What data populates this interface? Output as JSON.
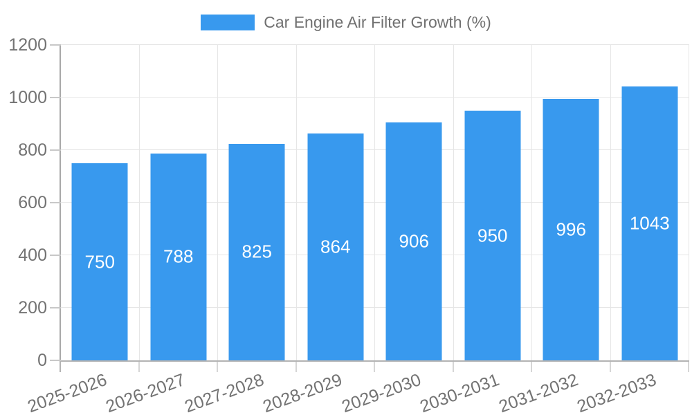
{
  "chart_data": {
    "type": "bar",
    "title": "Car Engine Air Filter Growth (%)",
    "categories": [
      "2025-2026",
      "2026-2027",
      "2027-2028",
      "2028-2029",
      "2029-2030",
      "2030-2031",
      "2031-2032",
      "2032-2033"
    ],
    "values": [
      750,
      788,
      825,
      864,
      906,
      950,
      996,
      1043
    ],
    "xlabel": "",
    "ylabel": "",
    "ylim": [
      0,
      1200
    ],
    "yticks": [
      0,
      200,
      400,
      600,
      800,
      1000,
      1200
    ],
    "grid": true,
    "legend_position": "top",
    "colors": {
      "bar": "#3899ee",
      "bar_value_label": "#ffffff",
      "axis_text": "#737373",
      "legend_text": "#707070",
      "gridline": "#e6e6e6",
      "axis_line": "#b3b3b3"
    }
  }
}
